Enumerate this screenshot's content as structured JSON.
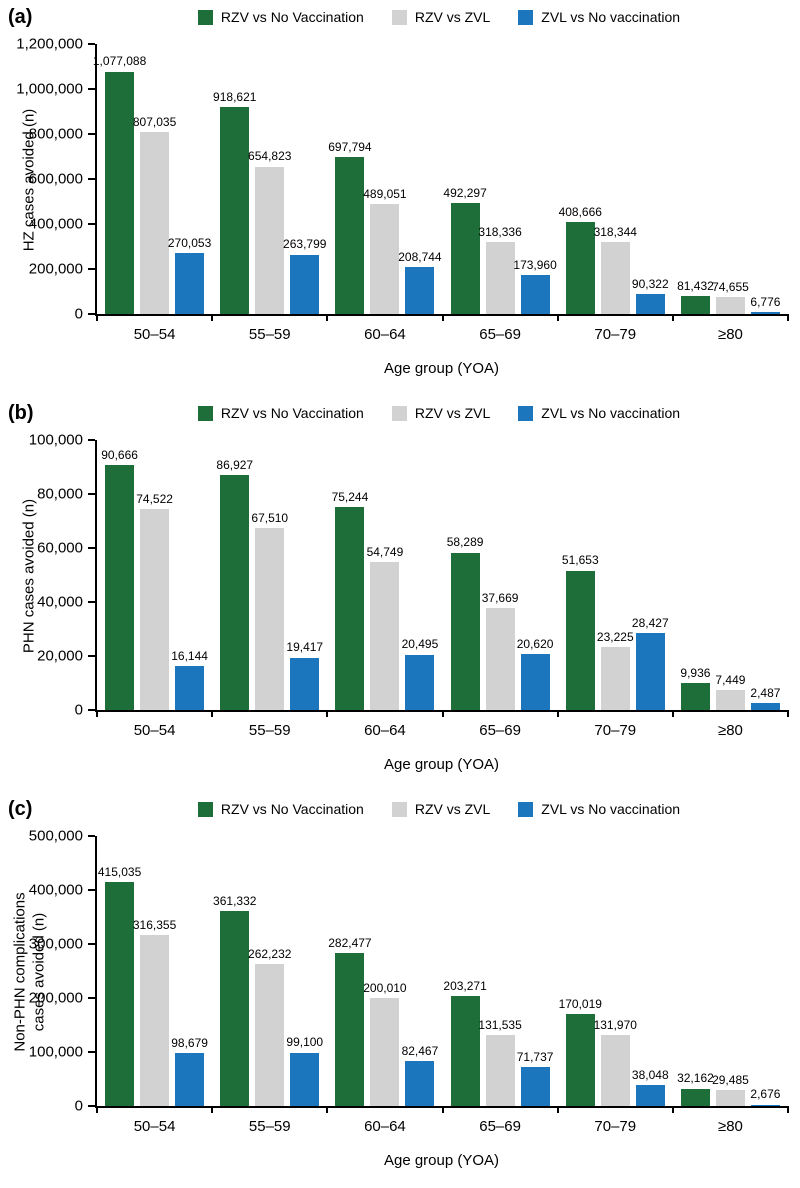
{
  "chart_data": [
    {
      "type": "bar",
      "panel_label": "(a)",
      "ylabel_lines": [
        "HZ cases avoided (n)"
      ],
      "xlabel": "Age group (YOA)",
      "ylim": [
        0,
        1200000
      ],
      "yticks": [
        {
          "v": 0,
          "label": "0"
        },
        {
          "v": 200000,
          "label": "200,000"
        },
        {
          "v": 400000,
          "label": "400,000"
        },
        {
          "v": 600000,
          "label": "600,000"
        },
        {
          "v": 800000,
          "label": "800,000"
        },
        {
          "v": 1000000,
          "label": "1,000,000"
        },
        {
          "v": 1200000,
          "label": "1,200,000"
        }
      ],
      "categories": [
        "50–54",
        "55–59",
        "60–64",
        "65–69",
        "70–79",
        "≥80"
      ],
      "legend": [
        {
          "label": "RZV vs No Vaccination",
          "color": "#1e6e3a"
        },
        {
          "label": "RZV vs ZVL",
          "color": "#d2d2d2"
        },
        {
          "label": "ZVL vs No vaccination",
          "color": "#1c76bd"
        }
      ],
      "series": [
        {
          "name": "RZV vs No Vaccination",
          "color": "#1e6e3a",
          "values": [
            1077088,
            918621,
            697794,
            492297,
            408666,
            81432
          ],
          "labels": [
            "1,077,088",
            "918,621",
            "697,794",
            "492,297",
            "408,666",
            "81,432"
          ]
        },
        {
          "name": "RZV vs ZVL",
          "color": "#d2d2d2",
          "values": [
            807035,
            654823,
            489051,
            318336,
            318344,
            74655
          ],
          "labels": [
            "807,035",
            "654,823",
            "489,051",
            "318,336",
            "318,344",
            "74,655"
          ]
        },
        {
          "name": "ZVL vs No vaccination",
          "color": "#1c76bd",
          "values": [
            270053,
            263799,
            208744,
            173960,
            90322,
            6776
          ],
          "labels": [
            "270,053",
            "263,799",
            "208,744",
            "173,960",
            "90,322",
            "6,776"
          ]
        }
      ]
    },
    {
      "type": "bar",
      "panel_label": "(b)",
      "ylabel_lines": [
        "PHN cases avoided (n)"
      ],
      "xlabel": "Age group (YOA)",
      "ylim": [
        0,
        100000
      ],
      "yticks": [
        {
          "v": 0,
          "label": "0"
        },
        {
          "v": 20000,
          "label": "20,000"
        },
        {
          "v": 40000,
          "label": "40,000"
        },
        {
          "v": 60000,
          "label": "60,000"
        },
        {
          "v": 80000,
          "label": "80,000"
        },
        {
          "v": 100000,
          "label": "100,000"
        }
      ],
      "categories": [
        "50–54",
        "55–59",
        "60–64",
        "65–69",
        "70–79",
        "≥80"
      ],
      "legend": [
        {
          "label": "RZV vs No Vaccination",
          "color": "#1e6e3a"
        },
        {
          "label": "RZV vs ZVL",
          "color": "#d2d2d2"
        },
        {
          "label": "ZVL vs No vaccination",
          "color": "#1c76bd"
        }
      ],
      "series": [
        {
          "name": "RZV vs No Vaccination",
          "color": "#1e6e3a",
          "values": [
            90666,
            86927,
            75244,
            58289,
            51653,
            9936
          ],
          "labels": [
            "90,666",
            "86,927",
            "75,244",
            "58,289",
            "51,653",
            "9,936"
          ]
        },
        {
          "name": "RZV vs ZVL",
          "color": "#d2d2d2",
          "values": [
            74522,
            67510,
            54749,
            37669,
            23225,
            7449
          ],
          "labels": [
            "74,522",
            "67,510",
            "54,749",
            "37,669",
            "23,225",
            "7,449"
          ]
        },
        {
          "name": "ZVL vs No vaccination",
          "color": "#1c76bd",
          "values": [
            16144,
            19417,
            20495,
            20620,
            28427,
            2487
          ],
          "labels": [
            "16,144",
            "19,417",
            "20,495",
            "20,620",
            "28,427",
            "2,487"
          ]
        }
      ]
    },
    {
      "type": "bar",
      "panel_label": "(c)",
      "ylabel_lines": [
        "Non-PHN complications",
        "cases avoided (n)"
      ],
      "xlabel": "Age group (YOA)",
      "ylim": [
        0,
        500000
      ],
      "yticks": [
        {
          "v": 0,
          "label": "0"
        },
        {
          "v": 100000,
          "label": "100,000"
        },
        {
          "v": 200000,
          "label": "200,000"
        },
        {
          "v": 300000,
          "label": "300,000"
        },
        {
          "v": 400000,
          "label": "400,000"
        },
        {
          "v": 500000,
          "label": "500,000"
        }
      ],
      "categories": [
        "50–54",
        "55–59",
        "60–64",
        "65–69",
        "70–79",
        "≥80"
      ],
      "legend": [
        {
          "label": "RZV vs No Vaccination",
          "color": "#1e6e3a"
        },
        {
          "label": "RZV vs ZVL",
          "color": "#d2d2d2"
        },
        {
          "label": "ZVL vs No vaccination",
          "color": "#1c76bd"
        }
      ],
      "series": [
        {
          "name": "RZV vs No Vaccination",
          "color": "#1e6e3a",
          "values": [
            415035,
            361332,
            282477,
            203271,
            170019,
            32162
          ],
          "labels": [
            "415,035",
            "361,332",
            "282,477",
            "203,271",
            "170,019",
            "32,162"
          ]
        },
        {
          "name": "RZV vs ZVL",
          "color": "#d2d2d2",
          "values": [
            316355,
            262232,
            200010,
            131535,
            131970,
            29485
          ],
          "labels": [
            "316,355",
            "262,232",
            "200,010",
            "131,535",
            "131,970",
            "29,485"
          ]
        },
        {
          "name": "ZVL vs No vaccination",
          "color": "#1c76bd",
          "values": [
            98679,
            99100,
            82467,
            71737,
            38048,
            2676
          ],
          "labels": [
            "98,679",
            "99,100",
            "82,467",
            "71,737",
            "38,048",
            "2,676"
          ]
        }
      ]
    }
  ]
}
